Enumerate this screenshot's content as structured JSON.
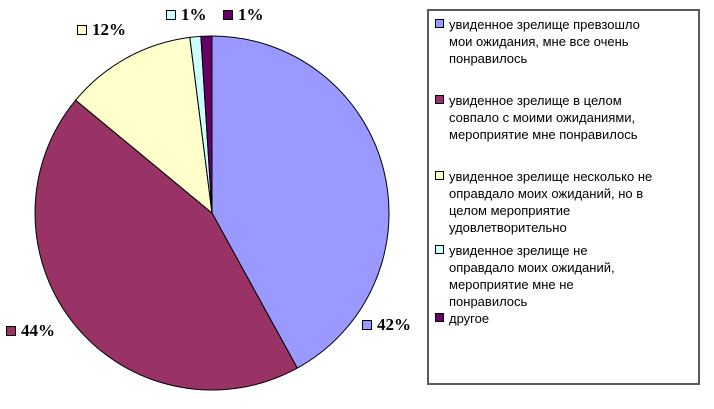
{
  "chart_data": {
    "type": "pie",
    "title": "",
    "legend_position": "right",
    "start_angle_deg": 0,
    "direction": "clockwise",
    "slice_border_color": "#000000",
    "slices": [
      {
        "label": "увиденное зрелище превзошло мои ожидания, мне все очень понравилось",
        "value": 42,
        "pct_label": "42%",
        "color": "#9999FF"
      },
      {
        "label": "увиденное зрелище в целом совпало с моими ожиданиями, мероприятие мне понравилось",
        "value": 44,
        "pct_label": "44%",
        "color": "#993366"
      },
      {
        "label": "увиденное зрелище несколько не оправдало моих ожиданий, но в целом мероприятие удовлетворительно",
        "value": 12,
        "pct_label": "12%",
        "color": "#FFFFCC"
      },
      {
        "label": "увиденное зрелище не оправдало моих ожиданий, мероприятие мне не понравилось",
        "value": 1,
        "pct_label": "1%",
        "color": "#CCFFFF"
      },
      {
        "label": "другое",
        "value": 1,
        "pct_label": "1%",
        "color": "#660066"
      }
    ]
  },
  "legend": {
    "border_color": "#5a5a5a",
    "items": [
      {
        "label": "увиденное зрелище превзошло\nмои ожидания, мне все очень\nпонравилось",
        "color": "#9999FF"
      },
      {
        "label": "увиденное зрелище в целом\nсовпало с моими ожиданиями,\nмероприятие мне понравилось",
        "color": "#993366"
      },
      {
        "label": "увиденное зрелище несколько не\nоправдало моих ожиданий, но в\nцелом мероприятие\nудовлетворительно",
        "color": "#FFFFCC"
      },
      {
        "label": "увиденное зрелище не\nоправдало моих ожиданий,\nмероприятие мне не\nпонравилось",
        "color": "#CCFFFF"
      },
      {
        "label": "другое",
        "color": "#660066"
      }
    ]
  }
}
